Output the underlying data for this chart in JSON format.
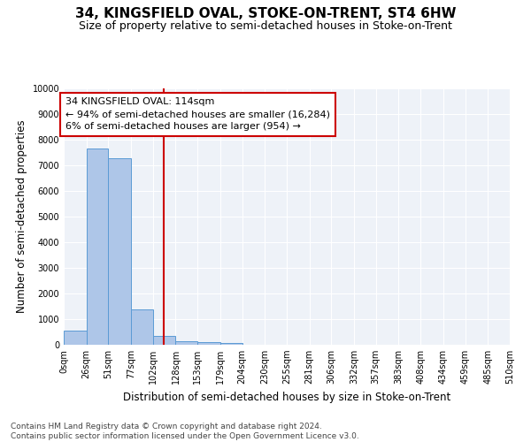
{
  "title": "34, KINGSFIELD OVAL, STOKE-ON-TRENT, ST4 6HW",
  "subtitle": "Size of property relative to semi-detached houses in Stoke-on-Trent",
  "xlabel": "Distribution of semi-detached houses by size in Stoke-on-Trent",
  "ylabel": "Number of semi-detached properties",
  "footnote": "Contains HM Land Registry data © Crown copyright and database right 2024.\nContains public sector information licensed under the Open Government Licence v3.0.",
  "bar_edges": [
    0,
    26,
    51,
    77,
    102,
    128,
    153,
    179,
    204,
    230,
    255,
    281,
    306,
    332,
    357,
    383,
    408,
    434,
    459,
    485,
    510
  ],
  "bar_heights": [
    560,
    7650,
    7270,
    1370,
    330,
    150,
    110,
    80,
    0,
    0,
    0,
    0,
    0,
    0,
    0,
    0,
    0,
    0,
    0,
    0
  ],
  "bar_color": "#aec6e8",
  "bar_edgecolor": "#5b9bd5",
  "property_size": 114,
  "property_label": "34 KINGSFIELD OVAL: 114sqm",
  "pct_smaller": 94,
  "n_smaller": 16284,
  "pct_larger": 6,
  "n_larger": 954,
  "vline_color": "#cc0000",
  "annotation_box_edgecolor": "#cc0000",
  "ylim": [
    0,
    10000
  ],
  "yticks": [
    0,
    1000,
    2000,
    3000,
    4000,
    5000,
    6000,
    7000,
    8000,
    9000,
    10000
  ],
  "xtick_labels": [
    "0sqm",
    "26sqm",
    "51sqm",
    "77sqm",
    "102sqm",
    "128sqm",
    "153sqm",
    "179sqm",
    "204sqm",
    "230sqm",
    "255sqm",
    "281sqm",
    "306sqm",
    "332sqm",
    "357sqm",
    "383sqm",
    "408sqm",
    "434sqm",
    "459sqm",
    "485sqm",
    "510sqm"
  ],
  "bg_color": "#eef2f8",
  "grid_color": "#ffffff",
  "title_fontsize": 11,
  "subtitle_fontsize": 9,
  "axis_label_fontsize": 8.5,
  "tick_fontsize": 7,
  "annotation_fontsize": 8,
  "footnote_fontsize": 6.5
}
